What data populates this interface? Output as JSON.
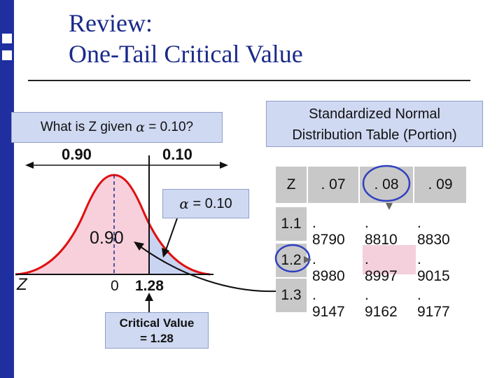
{
  "title": {
    "line1": "Review:",
    "line2": "One-Tail Critical Value"
  },
  "question": {
    "prefix": "What is Z given",
    "alpha_symbol": "α",
    "suffix": "= 0.10?"
  },
  "distribution": {
    "left_area_label": "0.90",
    "right_area_label": "0.10",
    "alpha_symbol": "α",
    "alpha_value": "= 0.10",
    "inside_area_label": "0.90",
    "axis_label": "Z",
    "mean_label": "0",
    "critical_label": "1.28",
    "critical_box_line1": "Critical Value",
    "critical_box_line2": "= 1.28"
  },
  "table": {
    "caption_line1": "Standardized Normal",
    "caption_line2": "Distribution Table (Portion)",
    "header_z": "Z",
    "columns": [
      ". 07",
      ". 08",
      ". 09"
    ],
    "rows": [
      {
        "z": "1.1",
        "values": [
          ". 8790",
          ". 8810",
          ". 8830"
        ]
      },
      {
        "z": "1.2",
        "values": [
          ". 8980",
          ". 8997",
          ". 9015"
        ]
      },
      {
        "z": "1.3",
        "values": [
          ". 9147",
          ". 9162",
          ". 9177"
        ]
      }
    ]
  },
  "colors": {
    "title": "#1a2a8a",
    "sidebar": "#1f2fa0",
    "left_area_fill": "#f7d0dc",
    "right_area_fill": "#c8d4f2",
    "curve": "#e01010",
    "highlight_circle": "#3040c0",
    "highlight_cell": "#f4d0dc"
  }
}
